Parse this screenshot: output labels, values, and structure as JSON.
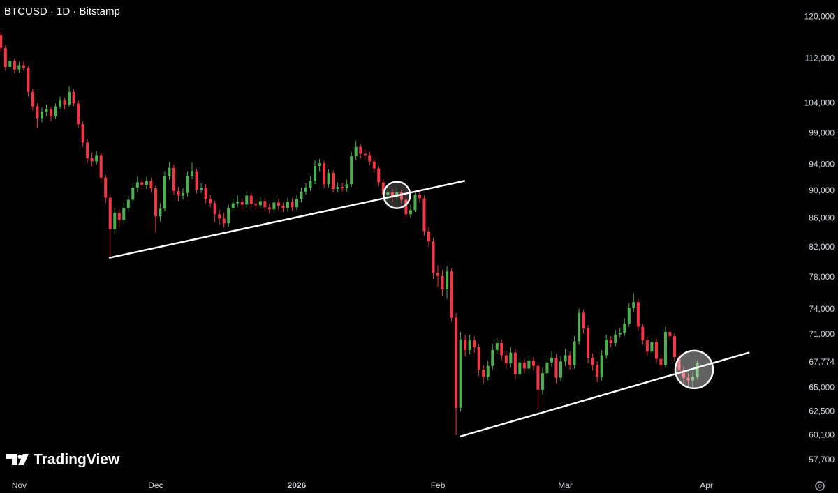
{
  "chart_data": {
    "type": "candlestick",
    "title": "BTCUSD · 1D · Bitstamp",
    "watermark": "TradingView",
    "log_scale": true,
    "grid": false,
    "up_color": "#4caf50",
    "down_color": "#f23645",
    "ylim": [
      56100,
      123400
    ],
    "xlim": [
      -0.2,
      174.7
    ],
    "yticks": [
      {
        "value": 120000,
        "label": "120,000"
      },
      {
        "value": 112000,
        "label": "112,000"
      },
      {
        "value": 104000,
        "label": "104,000"
      },
      {
        "value": 99000,
        "label": "99,000"
      },
      {
        "value": 94000,
        "label": "94,000"
      },
      {
        "value": 90000,
        "label": "90,000"
      },
      {
        "value": 86000,
        "label": "86,000"
      },
      {
        "value": 82000,
        "label": "82,000"
      },
      {
        "value": 78000,
        "label": "78,000"
      },
      {
        "value": 74000,
        "label": "74,000"
      },
      {
        "value": 71000,
        "label": "71,000"
      },
      {
        "value": 67774,
        "label": "67,774"
      },
      {
        "value": 65000,
        "label": "65,000"
      },
      {
        "value": 62500,
        "label": "62,500"
      },
      {
        "value": 60100,
        "label": "60,100"
      },
      {
        "value": 57700,
        "label": "57,700"
      }
    ],
    "xticks": [
      {
        "value": 4,
        "label": "Nov"
      },
      {
        "value": 34,
        "label": "Dec"
      },
      {
        "value": 65,
        "label": "2026"
      },
      {
        "value": 96,
        "label": "Feb"
      },
      {
        "value": 124,
        "label": "Mar"
      },
      {
        "value": 155,
        "label": "Apr"
      }
    ],
    "open": [
      116500,
      114000,
      110500,
      111500,
      110000,
      110800,
      110300,
      106000,
      103500,
      101500,
      102500,
      103000,
      101800,
      103500,
      104500,
      103800,
      106000,
      104000,
      100500,
      97500,
      95000,
      94500,
      95500,
      92000,
      89000,
      84500,
      86800,
      85800,
      87500,
      88700,
      90500,
      91300,
      90900,
      91500,
      90400,
      86300,
      87400,
      92300,
      93500,
      90000,
      89300,
      89700,
      92300,
      93000,
      90200,
      90500,
      88800,
      88200,
      86600,
      86000,
      85300,
      87500,
      88200,
      88400,
      88000,
      89300,
      88100,
      87900,
      88500,
      87600,
      87300,
      88300,
      87800,
      87500,
      88400,
      87600,
      88800,
      89900,
      90500,
      91500,
      93800,
      94200,
      91000,
      92700,
      90300,
      90600,
      90400,
      91000,
      95300,
      96800,
      95700,
      95500,
      94500,
      93400,
      91300,
      89400,
      89800,
      89100,
      89800,
      88700,
      86600,
      87200,
      89400,
      88900,
      84200,
      82800,
      78600,
      78200,
      76500,
      78800,
      73000,
      62900,
      70400,
      69200,
      70300,
      69500,
      67000,
      66200,
      67400,
      69200,
      70000,
      68600,
      67700,
      68900,
      66500,
      67800,
      67100,
      68000,
      67400,
      64800,
      66600,
      67800,
      68300,
      66100,
      67900,
      68600,
      67500,
      70200,
      73600,
      71700,
      68300,
      67500,
      66200,
      68600,
      70400,
      70000,
      71000,
      71200,
      72300,
      74200,
      74900,
      71900,
      70300,
      69000,
      70100,
      68200,
      67500,
      71300,
      70800,
      68400,
      66900,
      66100,
      65800,
      66200
    ],
    "high": [
      117000,
      114500,
      112200,
      112000,
      111400,
      111600,
      110700,
      106500,
      104000,
      103300,
      103800,
      103400,
      104000,
      105200,
      105000,
      107000,
      106400,
      104500,
      101000,
      98000,
      95900,
      96200,
      95900,
      92400,
      89500,
      87500,
      87300,
      88300,
      89300,
      91200,
      92200,
      91800,
      92100,
      92000,
      90800,
      88200,
      93000,
      94400,
      94000,
      90600,
      90400,
      93000,
      94300,
      93400,
      91200,
      91000,
      89400,
      88600,
      87300,
      86800,
      88000,
      88900,
      89300,
      88900,
      89900,
      89800,
      88700,
      89100,
      89000,
      88200,
      88900,
      88800,
      88300,
      89000,
      88900,
      89400,
      90500,
      91200,
      92200,
      94700,
      94900,
      94600,
      93300,
      93100,
      91300,
      91200,
      91700,
      96000,
      97800,
      97300,
      96300,
      96000,
      95000,
      93800,
      91800,
      90600,
      90300,
      90500,
      90200,
      89100,
      88000,
      90000,
      90100,
      89300,
      84800,
      83300,
      79600,
      79000,
      79500,
      79200,
      73500,
      71300,
      71000,
      71000,
      70800,
      69900,
      67500,
      68000,
      69900,
      70600,
      70400,
      69000,
      69500,
      69300,
      68400,
      68200,
      68600,
      68400,
      67800,
      67200,
      68500,
      69000,
      68700,
      68500,
      69300,
      69000,
      70800,
      74100,
      74000,
      72100,
      68800,
      67900,
      69200,
      71000,
      70800,
      71500,
      71800,
      72900,
      74800,
      76000,
      75300,
      72300,
      70700,
      70600,
      70500,
      68700,
      71900,
      71800,
      71200,
      68900,
      67400,
      66600,
      66800,
      68000
    ],
    "low": [
      113200,
      109800,
      110000,
      109300,
      109500,
      109800,
      105200,
      102800,
      99800,
      100800,
      101900,
      101000,
      101400,
      103100,
      103000,
      103400,
      103500,
      99800,
      96800,
      94200,
      93800,
      94000,
      91200,
      88200,
      80600,
      83800,
      84800,
      85300,
      87000,
      88200,
      89800,
      90300,
      90300,
      89800,
      84000,
      85600,
      87000,
      91700,
      89400,
      88500,
      88700,
      89200,
      91800,
      89600,
      89700,
      88200,
      87600,
      85500,
      85100,
      84700,
      84800,
      87000,
      87600,
      87300,
      87500,
      87600,
      87200,
      87400,
      87000,
      86700,
      86800,
      87200,
      86900,
      87000,
      87100,
      87200,
      88300,
      89400,
      90000,
      91000,
      93000,
      90400,
      90500,
      89800,
      89800,
      89900,
      89900,
      90600,
      94700,
      95000,
      94800,
      93900,
      92800,
      90700,
      88800,
      88200,
      88400,
      88600,
      88100,
      86000,
      86100,
      86900,
      88300,
      83600,
      82000,
      77800,
      76800,
      75700,
      75300,
      72500,
      60100,
      62500,
      68500,
      68700,
      68900,
      66300,
      65500,
      65800,
      67000,
      68700,
      68000,
      67100,
      67200,
      65900,
      66100,
      66600,
      66700,
      66900,
      62700,
      64300,
      66200,
      67300,
      65500,
      65700,
      67400,
      67000,
      67100,
      69800,
      71100,
      67700,
      66900,
      65600,
      65800,
      68200,
      69500,
      69600,
      70600,
      70800,
      71900,
      73700,
      71400,
      69800,
      68500,
      68600,
      67700,
      67000,
      67200,
      70300,
      67900,
      66400,
      65500,
      65200,
      65000,
      65900
    ],
    "close": [
      114000,
      110500,
      111500,
      110000,
      110800,
      110300,
      106000,
      103500,
      101500,
      102500,
      103000,
      101800,
      103500,
      104500,
      103800,
      106000,
      104000,
      100500,
      97500,
      95000,
      94500,
      95500,
      92000,
      89000,
      84500,
      86800,
      85800,
      87500,
      88700,
      90500,
      91300,
      90900,
      91500,
      90400,
      86300,
      87400,
      92300,
      93500,
      90000,
      89300,
      89700,
      92300,
      93000,
      90200,
      90500,
      88800,
      88200,
      86600,
      86000,
      85300,
      87500,
      88200,
      88400,
      88000,
      89300,
      88100,
      87900,
      88500,
      87600,
      87300,
      88300,
      87800,
      87500,
      88400,
      87600,
      88800,
      89900,
      90500,
      91500,
      93800,
      94200,
      91000,
      92700,
      90300,
      90600,
      90400,
      91000,
      95300,
      96800,
      95700,
      95500,
      94500,
      93400,
      91300,
      89400,
      89800,
      89100,
      89800,
      88700,
      86600,
      87200,
      89400,
      88900,
      84200,
      82800,
      78600,
      78200,
      76500,
      78800,
      73000,
      62900,
      70400,
      69200,
      70300,
      69500,
      67000,
      66200,
      67400,
      69200,
      70000,
      68600,
      67700,
      68900,
      66500,
      67800,
      67100,
      68000,
      67400,
      64800,
      66600,
      67800,
      68300,
      66100,
      67900,
      68600,
      67500,
      70200,
      73600,
      71700,
      68300,
      67500,
      66200,
      68600,
      70400,
      70000,
      71000,
      71200,
      72300,
      74200,
      74900,
      71900,
      70300,
      69000,
      70100,
      68200,
      67500,
      71300,
      70800,
      68400,
      66900,
      66100,
      65800,
      66200,
      67774
    ],
    "trendlines": [
      {
        "x": [
          23.9,
          101.8
        ],
        "y": [
          80600,
          91500
        ]
      },
      {
        "x": [
          101,
          164.3
        ],
        "y": [
          60000,
          68900
        ]
      }
    ],
    "highlights": [
      {
        "x": 87,
        "y": 89400
      },
      {
        "x": 152.3,
        "y": 67000
      }
    ]
  }
}
